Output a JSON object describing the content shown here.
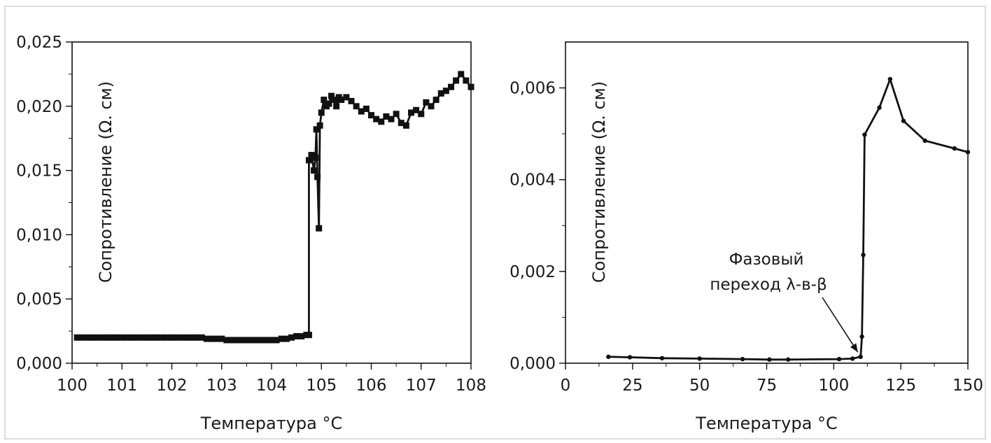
{
  "chart_data": [
    {
      "type": "scatter",
      "xlabel": "Температура °C",
      "ylabel": "Сопротивление (Ω. см)",
      "xlim": [
        100,
        108
      ],
      "ylim": [
        0,
        0.025
      ],
      "x_ticks": [
        "100",
        "101",
        "102",
        "103",
        "104",
        "105",
        "106",
        "107",
        "108"
      ],
      "y_ticks": [
        "0,000",
        "0,005",
        "0,010",
        "0,015",
        "0,020",
        "0,025"
      ],
      "grid": false,
      "marker": "square",
      "color": "#111111",
      "series": [
        {
          "x": [
            100.1,
            100.2,
            100.3,
            100.4,
            100.5,
            100.6,
            100.7,
            100.8,
            100.9,
            101.0,
            101.1,
            101.2,
            101.3,
            101.4,
            101.5,
            101.6,
            101.7,
            101.8,
            101.9,
            102.0,
            102.1,
            102.2,
            102.3,
            102.4,
            102.5,
            102.6,
            102.7,
            102.8,
            102.9,
            103.0,
            103.1,
            103.2,
            103.3,
            103.4,
            103.5,
            103.6,
            103.7,
            103.8,
            103.9,
            104.0,
            104.1,
            104.2,
            104.3,
            104.4,
            104.5,
            104.6,
            104.7,
            104.75,
            104.75,
            104.8,
            104.85,
            104.88,
            104.9,
            104.92,
            104.95,
            104.97,
            105.0,
            105.05,
            105.1,
            105.15,
            105.2,
            105.25,
            105.3,
            105.35,
            105.4,
            105.5,
            105.6,
            105.7,
            105.8,
            105.9,
            106.0,
            106.1,
            106.2,
            106.3,
            106.4,
            106.5,
            106.6,
            106.7,
            106.8,
            106.9,
            107.0,
            107.1,
            107.2,
            107.3,
            107.4,
            107.5,
            107.6,
            107.7,
            107.8,
            107.9,
            108.0
          ],
          "y": [
            0.002,
            0.002,
            0.002,
            0.002,
            0.002,
            0.002,
            0.002,
            0.002,
            0.002,
            0.002,
            0.002,
            0.002,
            0.002,
            0.002,
            0.002,
            0.002,
            0.002,
            0.002,
            0.002,
            0.002,
            0.002,
            0.002,
            0.002,
            0.002,
            0.002,
            0.002,
            0.0019,
            0.0019,
            0.0019,
            0.0019,
            0.0018,
            0.0018,
            0.0018,
            0.0018,
            0.0018,
            0.0018,
            0.0018,
            0.0018,
            0.0018,
            0.0018,
            0.0018,
            0.0019,
            0.0019,
            0.002,
            0.0021,
            0.0021,
            0.0022,
            0.0022,
            0.0158,
            0.0162,
            0.015,
            0.016,
            0.0182,
            0.0145,
            0.0105,
            0.0185,
            0.0195,
            0.0205,
            0.02,
            0.0202,
            0.0208,
            0.0205,
            0.02,
            0.0207,
            0.0205,
            0.0207,
            0.0204,
            0.02,
            0.0196,
            0.0198,
            0.0193,
            0.019,
            0.0188,
            0.0192,
            0.019,
            0.0194,
            0.0187,
            0.0185,
            0.0195,
            0.0197,
            0.0194,
            0.0203,
            0.02,
            0.0205,
            0.021,
            0.0212,
            0.0215,
            0.022,
            0.0225,
            0.022,
            0.0215
          ]
        }
      ]
    },
    {
      "type": "line",
      "xlabel": "Температура °C",
      "ylabel": "Сопротивление (Ω. см)",
      "xlim": [
        0,
        150
      ],
      "ylim": [
        0,
        0.007
      ],
      "x_ticks": [
        "0",
        "25",
        "50",
        "75",
        "100",
        "125",
        "150"
      ],
      "y_ticks": [
        "0,000",
        "0,002",
        "0,004",
        "0,006"
      ],
      "grid": false,
      "marker": "dot",
      "color": "#111111",
      "annotation": {
        "lines": [
          "Фазовый",
          "переход λ-в-β"
        ],
        "points_to": [
          110,
          0.00015
        ]
      },
      "series": [
        {
          "x": [
            16,
            24,
            36,
            50,
            66,
            76,
            83,
            102,
            107,
            110,
            110.5,
            111,
            111.5,
            117,
            121,
            126,
            134,
            145,
            150
          ],
          "y": [
            0.00014,
            0.00013,
            0.00011,
            0.0001,
            9e-05,
            8e-05,
            8e-05,
            9e-05,
            0.0001,
            0.00014,
            0.00058,
            0.00236,
            0.00498,
            0.00557,
            0.00619,
            0.00528,
            0.00485,
            0.00468,
            0.0046
          ]
        }
      ]
    }
  ]
}
